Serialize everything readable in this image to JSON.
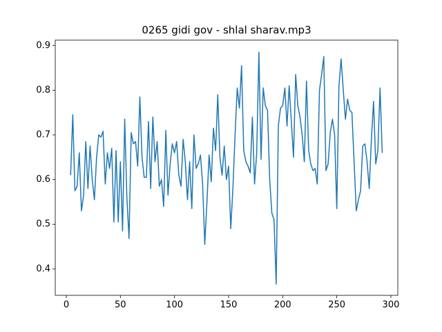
{
  "chart_data": {
    "type": "line",
    "title": "0265 gidi gov - shlal sharav.mp3",
    "x": [
      4,
      6,
      8,
      10,
      12,
      14,
      16,
      18,
      20,
      22,
      24,
      26,
      28,
      30,
      32,
      34,
      36,
      38,
      40,
      42,
      44,
      46,
      48,
      50,
      52,
      54,
      56,
      58,
      60,
      62,
      64,
      66,
      68,
      70,
      72,
      74,
      76,
      78,
      80,
      82,
      84,
      86,
      88,
      90,
      92,
      94,
      96,
      98,
      100,
      102,
      104,
      106,
      108,
      110,
      112,
      114,
      116,
      118,
      120,
      122,
      124,
      126,
      128,
      130,
      132,
      134,
      136,
      138,
      140,
      142,
      144,
      146,
      148,
      150,
      152,
      154,
      156,
      158,
      160,
      162,
      164,
      166,
      168,
      170,
      172,
      174,
      176,
      178,
      180,
      182,
      184,
      186,
      188,
      190,
      192,
      194,
      196,
      198,
      200,
      202,
      204,
      206,
      208,
      210,
      212,
      214,
      216,
      218,
      220,
      222,
      224,
      226,
      228,
      230,
      232,
      234,
      236,
      238,
      240,
      242,
      244,
      246,
      248,
      250,
      252,
      254,
      256,
      258,
      260,
      262,
      264,
      266,
      268,
      270,
      272,
      274,
      276,
      278,
      280,
      282,
      284,
      286,
      288,
      290,
      292
    ],
    "values": [
      0.61,
      0.745,
      0.575,
      0.585,
      0.66,
      0.53,
      0.565,
      0.685,
      0.58,
      0.675,
      0.6,
      0.555,
      0.65,
      0.7,
      0.695,
      0.708,
      0.59,
      0.66,
      0.625,
      0.67,
      0.505,
      0.665,
      0.505,
      0.64,
      0.485,
      0.735,
      0.56,
      0.468,
      0.705,
      0.68,
      0.685,
      0.63,
      0.785,
      0.65,
      0.605,
      0.605,
      0.73,
      0.58,
      0.74,
      0.64,
      0.685,
      0.585,
      0.6,
      0.54,
      0.71,
      0.565,
      0.635,
      0.68,
      0.66,
      0.685,
      0.61,
      0.585,
      0.69,
      0.64,
      0.555,
      0.64,
      0.535,
      0.7,
      0.625,
      0.635,
      0.655,
      0.59,
      0.455,
      0.55,
      0.655,
      0.595,
      0.715,
      0.665,
      0.79,
      0.65,
      0.61,
      0.675,
      0.6,
      0.63,
      0.49,
      0.58,
      0.7,
      0.805,
      0.76,
      0.855,
      0.665,
      0.64,
      0.63,
      0.615,
      0.74,
      0.59,
      0.66,
      0.885,
      0.645,
      0.805,
      0.765,
      0.755,
      0.6,
      0.525,
      0.51,
      0.366,
      0.72,
      0.76,
      0.765,
      0.805,
      0.72,
      0.81,
      0.73,
      0.65,
      0.835,
      0.765,
      0.74,
      0.7,
      0.64,
      0.82,
      0.665,
      0.635,
      0.62,
      0.625,
      0.59,
      0.8,
      0.835,
      0.875,
      0.62,
      0.635,
      0.705,
      0.735,
      0.7,
      0.535,
      0.81,
      0.87,
      0.8,
      0.735,
      0.78,
      0.755,
      0.75,
      0.64,
      0.53,
      0.555,
      0.575,
      0.675,
      0.68,
      0.64,
      0.58,
      0.69,
      0.775,
      0.635,
      0.665,
      0.805,
      0.66
    ],
    "color": "#1f77b4",
    "xlim": [
      -10.2,
      306.4
    ],
    "xticks": [
      0,
      50,
      100,
      150,
      200,
      250,
      300
    ],
    "ylim": [
      0.341,
      0.912
    ],
    "yticks": [
      0.4,
      0.5,
      0.6,
      0.7,
      0.8,
      0.9
    ]
  }
}
